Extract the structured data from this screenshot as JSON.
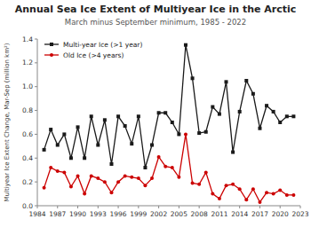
{
  "chart_data": {
    "type": "line",
    "title": "Annual Sea Ice Extent of Multiyear Ice in the Arctic",
    "subtitle": "March minus September minimum, 1985 - 2022",
    "y_label": "Multiyear Ice Extent Change, Mar-Sep (million km²)",
    "x": [
      1985,
      1986,
      1987,
      1988,
      1989,
      1990,
      1991,
      1992,
      1993,
      1994,
      1995,
      1996,
      1997,
      1998,
      1999,
      2000,
      2001,
      2002,
      2003,
      2004,
      2005,
      2006,
      2007,
      2008,
      2009,
      2010,
      2011,
      2012,
      2013,
      2014,
      2015,
      2016,
      2017,
      2018,
      2019,
      2020,
      2021,
      2022
    ],
    "series": [
      {
        "name": "Multi-year Ice (>1 year)",
        "color": "#1a1a1a",
        "marker": "square",
        "values": [
          0.47,
          0.64,
          0.51,
          0.6,
          0.4,
          0.66,
          0.4,
          0.75,
          0.51,
          0.72,
          0.35,
          0.75,
          0.67,
          0.52,
          0.75,
          0.32,
          0.51,
          0.78,
          0.78,
          0.7,
          0.6,
          1.35,
          1.07,
          0.61,
          0.62,
          0.83,
          0.77,
          1.04,
          0.45,
          0.79,
          1.05,
          0.94,
          0.65,
          0.84,
          0.79,
          0.7,
          0.75,
          0.75
        ]
      },
      {
        "name": "Old Ice (>4 years)",
        "color": "#cc0000",
        "marker": "circle",
        "values": [
          0.15,
          0.32,
          0.29,
          0.28,
          0.16,
          0.25,
          0.1,
          0.25,
          0.23,
          0.2,
          0.11,
          0.2,
          0.25,
          0.24,
          0.23,
          0.17,
          0.23,
          0.41,
          0.33,
          0.32,
          0.24,
          0.6,
          0.19,
          0.18,
          0.28,
          0.1,
          0.06,
          0.17,
          0.18,
          0.14,
          0.05,
          0.14,
          0.03,
          0.11,
          0.1,
          0.13,
          0.09,
          0.09
        ]
      }
    ],
    "xlim": [
      1984,
      2023
    ],
    "xticks": [
      1984,
      1987,
      1990,
      1993,
      1996,
      1999,
      2002,
      2005,
      2008,
      2011,
      2014,
      2017,
      2020,
      2023
    ],
    "ylim": [
      0.0,
      1.4
    ],
    "yticks": [
      {
        "value": 0.0,
        "label": "0.0"
      },
      0.2,
      0.4,
      0.6,
      0.8,
      {
        "value": 1.0,
        "label": "1.0"
      },
      1.2,
      1.4
    ],
    "grid": false,
    "legend": "upper left"
  }
}
